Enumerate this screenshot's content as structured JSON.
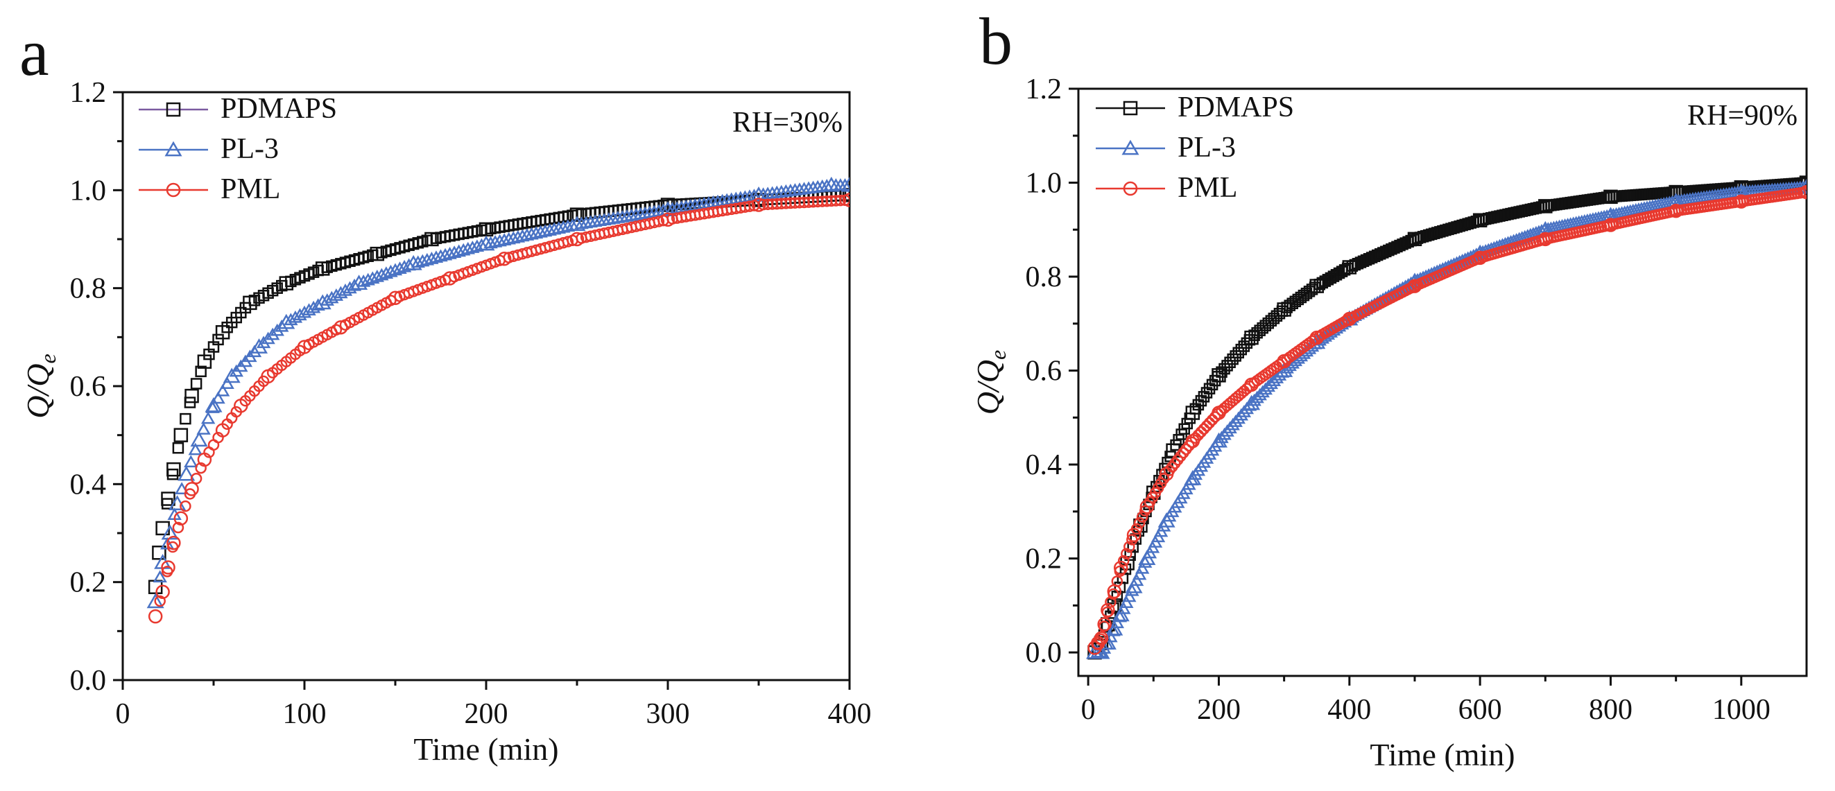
{
  "chart_data": [
    {
      "panel": "a",
      "type": "scatter",
      "title": "",
      "annotation": "RH=30%",
      "xlabel": "Time (min)",
      "ylabel_main": "Q/Q",
      "ylabel_sub": "e",
      "xlim": [
        0,
        400
      ],
      "ylim": [
        0,
        1.2
      ],
      "xticks": [
        "0",
        "100",
        "200",
        "300",
        "400"
      ],
      "yticks": [
        "0.0",
        "0.2",
        "0.4",
        "0.6",
        "0.8",
        "1.0",
        "1.2"
      ],
      "legend_position": "top-left",
      "series": [
        {
          "name": "PDMAPS",
          "marker": "square",
          "color": "#111111",
          "line_color": "#7a5aa0",
          "x": [
            18,
            20,
            22,
            25,
            28,
            32,
            38,
            45,
            55,
            70,
            90,
            110,
            140,
            170,
            200,
            250,
            300,
            350,
            400
          ],
          "y": [
            0.19,
            0.26,
            0.31,
            0.37,
            0.43,
            0.5,
            0.58,
            0.65,
            0.71,
            0.77,
            0.81,
            0.84,
            0.87,
            0.9,
            0.92,
            0.95,
            0.97,
            0.98,
            0.99
          ]
        },
        {
          "name": "PL-3",
          "marker": "triangle",
          "color": "#4a73c4",
          "line_color": "#4a73c4",
          "x": [
            18,
            22,
            26,
            30,
            35,
            42,
            50,
            60,
            75,
            90,
            110,
            130,
            160,
            200,
            250,
            300,
            350,
            390,
            400
          ],
          "y": [
            0.16,
            0.24,
            0.3,
            0.36,
            0.42,
            0.49,
            0.56,
            0.62,
            0.68,
            0.73,
            0.77,
            0.81,
            0.85,
            0.89,
            0.93,
            0.96,
            0.99,
            1.01,
            1.01
          ]
        },
        {
          "name": "PML",
          "marker": "circle",
          "color": "#e8392f",
          "line_color": "#e8392f",
          "x": [
            18,
            22,
            25,
            28,
            32,
            38,
            45,
            55,
            65,
            80,
            100,
            120,
            150,
            180,
            210,
            250,
            300,
            350,
            400
          ],
          "y": [
            0.13,
            0.18,
            0.23,
            0.28,
            0.33,
            0.39,
            0.45,
            0.51,
            0.56,
            0.62,
            0.68,
            0.72,
            0.78,
            0.82,
            0.86,
            0.9,
            0.94,
            0.97,
            0.98
          ]
        }
      ]
    },
    {
      "panel": "b",
      "type": "scatter",
      "title": "",
      "annotation": "RH=90%",
      "xlabel": "Time (min)",
      "ylabel_main": "Q/Q",
      "ylabel_sub": "e",
      "xlim": [
        -15,
        1100
      ],
      "ylim": [
        -0.05,
        1.2
      ],
      "xticks": [
        "0",
        "200",
        "400",
        "600",
        "800",
        "1000"
      ],
      "yticks": [
        "0.0",
        "0.2",
        "0.4",
        "0.6",
        "0.8",
        "1.0",
        "1.2"
      ],
      "legend_position": "top-left",
      "series": [
        {
          "name": "PDMAPS",
          "marker": "square",
          "color": "#111111",
          "line_color": "#111111",
          "x": [
            10,
            20,
            30,
            40,
            60,
            80,
            100,
            130,
            160,
            200,
            250,
            300,
            350,
            400,
            500,
            600,
            700,
            800,
            900,
            1000,
            1100
          ],
          "y": [
            0.0,
            0.02,
            0.06,
            0.1,
            0.19,
            0.27,
            0.34,
            0.43,
            0.51,
            0.59,
            0.67,
            0.73,
            0.78,
            0.82,
            0.88,
            0.92,
            0.95,
            0.97,
            0.98,
            0.99,
            1.0
          ]
        },
        {
          "name": "PL-3",
          "marker": "triangle",
          "color": "#4a73c4",
          "line_color": "#4a73c4",
          "x": [
            10,
            20,
            30,
            40,
            50,
            70,
            90,
            120,
            160,
            200,
            250,
            300,
            350,
            400,
            500,
            600,
            700,
            800,
            900,
            1000,
            1100
          ],
          "y": [
            0.0,
            0.0,
            0.02,
            0.05,
            0.08,
            0.14,
            0.2,
            0.28,
            0.37,
            0.45,
            0.53,
            0.6,
            0.66,
            0.71,
            0.79,
            0.85,
            0.9,
            0.93,
            0.96,
            0.98,
            0.99
          ]
        },
        {
          "name": "PML",
          "marker": "circle",
          "color": "#e8392f",
          "line_color": "#e8392f",
          "x": [
            10,
            15,
            20,
            25,
            30,
            40,
            50,
            70,
            90,
            120,
            160,
            200,
            250,
            300,
            350,
            400,
            500,
            600,
            700,
            800,
            900,
            1000,
            1100
          ],
          "y": [
            0.01,
            0.02,
            0.03,
            0.06,
            0.09,
            0.13,
            0.18,
            0.25,
            0.31,
            0.38,
            0.45,
            0.51,
            0.57,
            0.62,
            0.67,
            0.71,
            0.78,
            0.84,
            0.88,
            0.91,
            0.94,
            0.96,
            0.98
          ]
        }
      ]
    }
  ]
}
